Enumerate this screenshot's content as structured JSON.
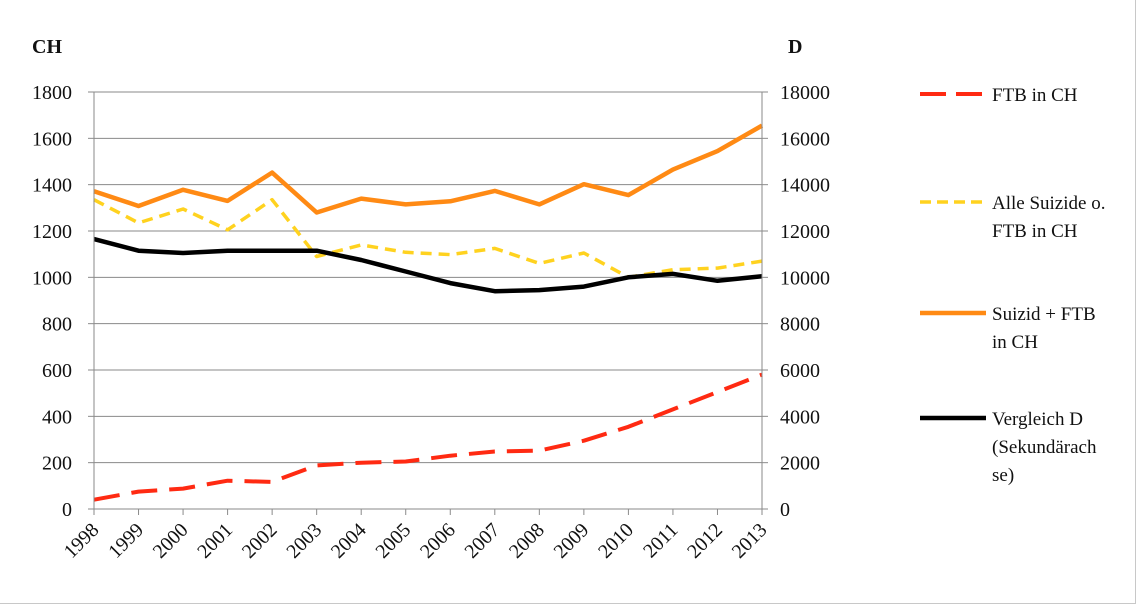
{
  "chart_data": {
    "type": "line",
    "categories": [
      "1998",
      "1999",
      "2000",
      "2001",
      "2002",
      "2003",
      "2004",
      "2005",
      "2006",
      "2007",
      "2008",
      "2009",
      "2010",
      "2011",
      "2012",
      "2013"
    ],
    "left_axis": {
      "title": "CH",
      "ylim": [
        0,
        1800
      ],
      "ticks": [
        "0",
        "200",
        "400",
        "600",
        "800",
        "1000",
        "1200",
        "1400",
        "1600",
        "1800"
      ]
    },
    "right_axis": {
      "title": "D",
      "ylim": [
        0,
        18000
      ],
      "ticks": [
        "0",
        "2000",
        "4000",
        "6000",
        "8000",
        "10000",
        "12000",
        "14000",
        "16000",
        "18000"
      ]
    },
    "grid": "horizontal",
    "legend_position": "right",
    "series": [
      {
        "name": "FTB in CH",
        "legend_lines": [
          "FTB in CH"
        ],
        "axis": "left",
        "color": "#ff2a12",
        "dash": "long-dash",
        "values": [
          40,
          75,
          88,
          122,
          117,
          188,
          200,
          205,
          230,
          248,
          252,
          295,
          355,
          430,
          505,
          580
        ]
      },
      {
        "name": "Alle Suizide o. FTB in CH",
        "legend_lines": [
          "Alle Suizide o.",
          "FTB in CH"
        ],
        "axis": "left",
        "color": "#ffd21f",
        "dash": "short-dash",
        "values": [
          1335,
          1235,
          1295,
          1205,
          1335,
          1090,
          1140,
          1108,
          1098,
          1125,
          1060,
          1105,
          1000,
          1033,
          1040,
          1070
        ]
      },
      {
        "name": "Suizid + FTB in CH",
        "legend_lines": [
          "Suizid + FTB",
          "in CH"
        ],
        "axis": "left",
        "color": "#ff8a14",
        "dash": "solid",
        "values": [
          1372,
          1308,
          1378,
          1330,
          1452,
          1280,
          1340,
          1315,
          1328,
          1373,
          1315,
          1402,
          1355,
          1465,
          1545,
          1655
        ]
      },
      {
        "name": "Vergleich D (Sekundärachse)",
        "legend_lines": [
          "Vergleich D",
          "(Sekundärach",
          "se)"
        ],
        "axis": "right",
        "color": "#000000",
        "dash": "solid",
        "values": [
          11650,
          11150,
          11050,
          11150,
          11150,
          11150,
          10750,
          10250,
          9750,
          9400,
          9450,
          9600,
          10000,
          10150,
          9850,
          10050
        ]
      }
    ]
  }
}
